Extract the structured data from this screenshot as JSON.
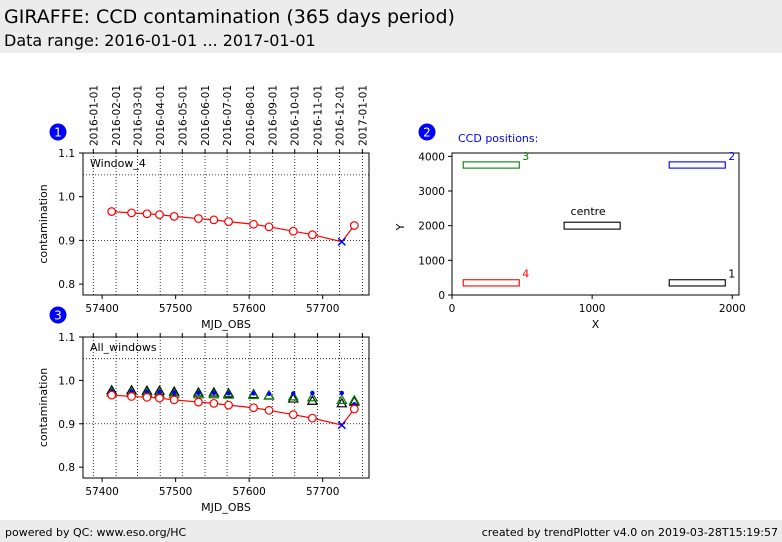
{
  "header": {
    "title": "GIRAFFE: CCD contamination (365 days period)",
    "subtitle": "Data range: 2016-01-01 ... 2017-01-01"
  },
  "footer": {
    "left": "powered by QC: www.eso.org/HC",
    "right": "created by trendPlotter v4.0 on 2019-03-28T15:19:57"
  },
  "colors": {
    "header_bg": "#ececec",
    "series_red": "#ff0000",
    "marker_blue": "#0000ff",
    "badge_blue": "#0000ff",
    "window_black": "#000000",
    "window_blue": "#0000ff",
    "window_green": "#008000",
    "window_red": "#ff0000"
  },
  "chart_data": [
    {
      "id": "1",
      "type": "line",
      "panel_label": "Window_4",
      "xlabel": "MJD_OBS",
      "ylabel": "contamination",
      "xlim": [
        57374,
        57763
      ],
      "ylim": [
        0.775,
        1.1
      ],
      "xticks": [
        57400,
        57500,
        57600,
        57700
      ],
      "yticks": [
        0.8,
        0.9,
        1.0,
        1.1
      ],
      "ytick_labels": [
        "0.8",
        "0.9",
        "1.0",
        "1.1"
      ],
      "hlines": [
        1.05,
        0.9
      ],
      "date_ticks": {
        "mjd": [
          57388,
          57419,
          57448,
          57479,
          57509,
          57540,
          57570,
          57601,
          57632,
          57662,
          57693,
          57723,
          57754
        ],
        "labels": [
          "2016-01-01",
          "2016-02-01",
          "2016-03-01",
          "2016-04-01",
          "2016-05-01",
          "2016-06-01",
          "2016-07-01",
          "2016-08-01",
          "2016-09-01",
          "2016-10-01",
          "2016-11-01",
          "2016-12-01",
          "2017-01-01"
        ]
      },
      "series": [
        {
          "x": [
            57413,
            57440,
            57461,
            57478,
            57498,
            57531,
            57552,
            57572,
            57606,
            57627,
            57660,
            57686,
            57743
          ],
          "y": [
            0.966,
            0.963,
            0.961,
            0.959,
            0.955,
            0.95,
            0.947,
            0.943,
            0.937,
            0.931,
            0.921,
            0.913,
            0.934
          ],
          "marker": "open-circle",
          "color": "#ff0000"
        }
      ],
      "flagged_points": [
        {
          "x": 57726,
          "y": 0.897,
          "marker": "x",
          "color": "#0000ff"
        }
      ]
    },
    {
      "id": "3",
      "type": "line",
      "panel_label": "All_windows",
      "xlabel": "MJD_OBS",
      "ylabel": "contamination",
      "xlim": [
        57374,
        57763
      ],
      "ylim": [
        0.775,
        1.1
      ],
      "xticks": [
        57400,
        57500,
        57600,
        57700
      ],
      "yticks": [
        0.8,
        0.9,
        1.0,
        1.1
      ],
      "ytick_labels": [
        "0.8",
        "0.9",
        "1.0",
        "1.1"
      ],
      "hlines": [
        1.05,
        0.9
      ],
      "date_ticks": {
        "mjd": [
          57388,
          57419,
          57448,
          57479,
          57509,
          57540,
          57570,
          57601,
          57632,
          57662,
          57693,
          57723,
          57754
        ],
        "labels": []
      },
      "series": [
        {
          "x": [
            57413,
            57440,
            57461,
            57478,
            57498,
            57531,
            57552,
            57572,
            57606,
            57627,
            57660,
            57686,
            57743
          ],
          "y": [
            0.966,
            0.963,
            0.961,
            0.959,
            0.955,
            0.95,
            0.947,
            0.943,
            0.937,
            0.931,
            0.921,
            0.913,
            0.934
          ],
          "marker": "open-circle",
          "color": "#ff0000"
        },
        {
          "x": [
            57413,
            57440,
            57461,
            57478,
            57498,
            57531,
            57552,
            57572,
            57606,
            57627,
            57660,
            57686,
            57726,
            57743
          ],
          "y": [
            0.977,
            0.977,
            0.976,
            0.976,
            0.974,
            0.972,
            0.972,
            0.97,
            0.968,
            0.965,
            0.958,
            0.953,
            0.947,
            0.951
          ],
          "marker": "open-triangle",
          "color": "#000000"
        },
        {
          "x": [
            57413,
            57440,
            57461,
            57478,
            57498,
            57531,
            57552,
            57572,
            57606,
            57627,
            57660,
            57686,
            57726,
            57743
          ],
          "y": [
            0.972,
            0.971,
            0.971,
            0.97,
            0.969,
            0.968,
            0.968,
            0.967,
            0.966,
            0.965,
            0.963,
            0.961,
            0.955,
            0.954
          ],
          "marker": "open-triangle",
          "color": "#008000"
        },
        {
          "x": [
            57413,
            57440,
            57461,
            57478,
            57498,
            57531,
            57552,
            57572,
            57606,
            57627,
            57660,
            57686,
            57726,
            57743
          ],
          "y": [
            0.974,
            0.974,
            0.973,
            0.973,
            0.972,
            0.971,
            0.971,
            0.97,
            0.97,
            0.969,
            0.97,
            0.971,
            0.971,
            0.945
          ],
          "marker": "dot",
          "color": "#0000ff"
        }
      ],
      "flagged_points": [
        {
          "x": 57726,
          "y": 0.897,
          "marker": "x",
          "color": "#0000ff"
        }
      ]
    },
    {
      "id": "2",
      "type": "scatter",
      "panel_label": "CCD positions:",
      "xlabel": "X",
      "ylabel": "Y",
      "xlim": [
        0,
        2048
      ],
      "ylim": [
        0,
        4096
      ],
      "xticks": [
        0,
        1000,
        2000
      ],
      "yticks": [
        0,
        1000,
        2000,
        3000,
        4000
      ],
      "windows": [
        {
          "label": "1",
          "x0": 1550,
          "x1": 1950,
          "y0": 260,
          "y1": 440,
          "color": "#000000"
        },
        {
          "label": "2",
          "x0": 1550,
          "x1": 1950,
          "y0": 3660,
          "y1": 3840,
          "color": "#0000ff"
        },
        {
          "label": "3",
          "x0": 80,
          "x1": 480,
          "y0": 3660,
          "y1": 3840,
          "color": "#008000"
        },
        {
          "label": "4",
          "x0": 80,
          "x1": 480,
          "y0": 260,
          "y1": 440,
          "color": "#ff0000"
        },
        {
          "label": "centre",
          "x0": 800,
          "x1": 1200,
          "y0": 1900,
          "y1": 2100,
          "color": "#000000"
        }
      ]
    }
  ]
}
